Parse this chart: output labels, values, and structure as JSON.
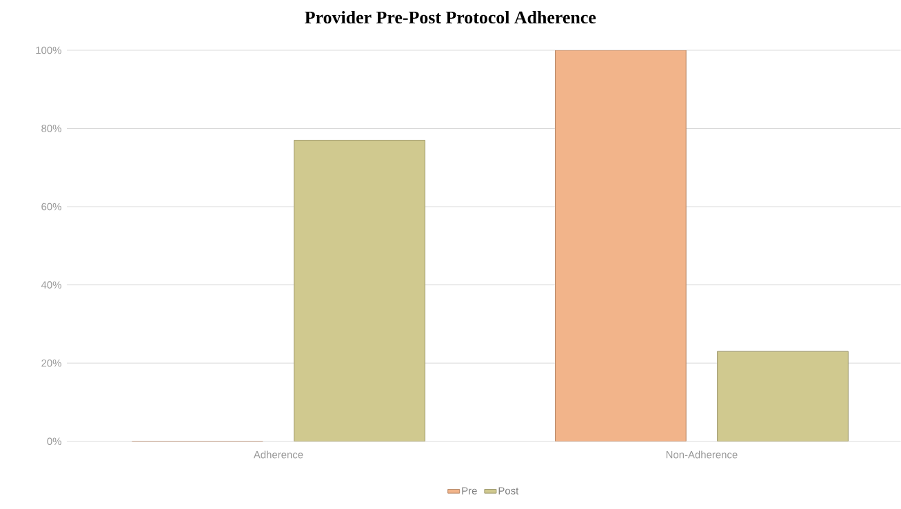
{
  "chart_data": {
    "type": "bar",
    "title": "Provider Pre-Post Protocol Adherence",
    "categories": [
      "Adherence",
      "Non-Adherence"
    ],
    "series": [
      {
        "name": "Pre",
        "color": "#f2b48a",
        "values": [
          0,
          100
        ]
      },
      {
        "name": "Post",
        "color": "#d0c98f",
        "values": [
          77,
          23
        ]
      }
    ],
    "ylim": [
      0,
      100
    ],
    "yticks": [
      {
        "value": 0,
        "label": "0%"
      },
      {
        "value": 20,
        "label": "20%"
      },
      {
        "value": 40,
        "label": "40%"
      },
      {
        "value": 60,
        "label": "60%"
      },
      {
        "value": 80,
        "label": "80%"
      },
      {
        "value": 100,
        "label": "100%"
      }
    ],
    "grid": "y",
    "legend": "bottom"
  }
}
